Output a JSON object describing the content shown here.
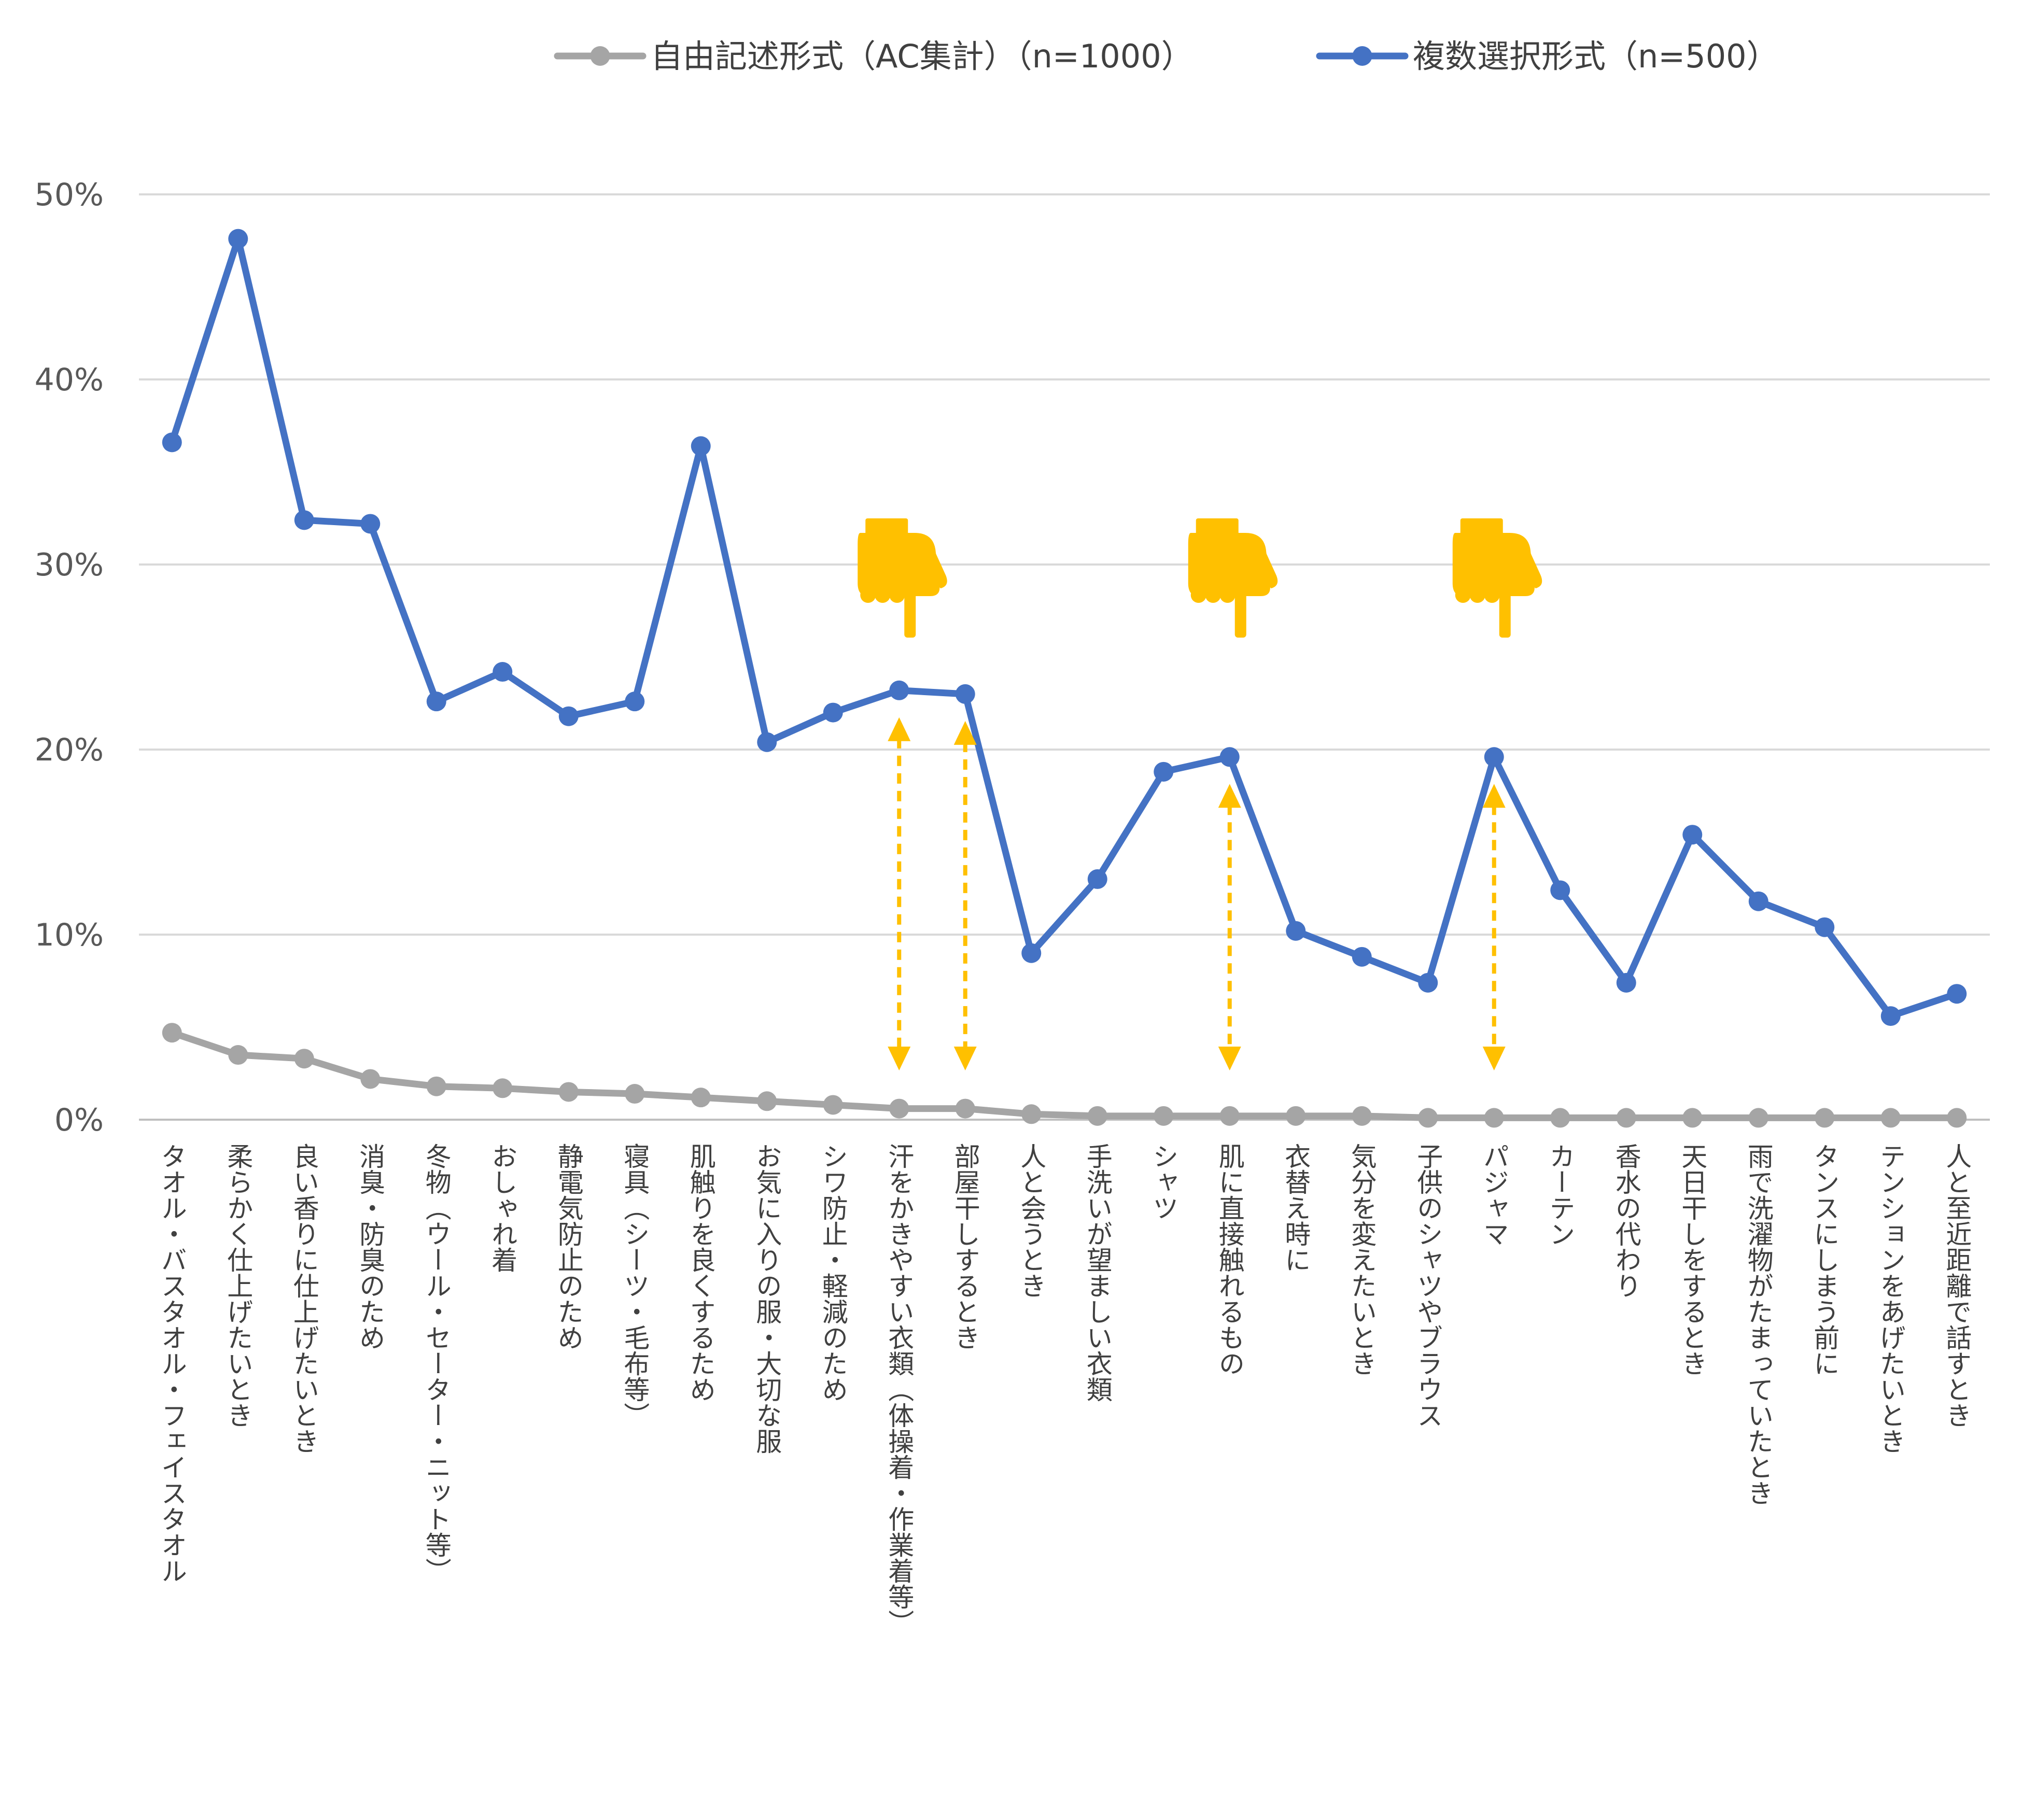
{
  "colors": {
    "series_free": "#a5a5a5",
    "series_multi": "#4472c4",
    "accent": "#ffc000",
    "grid": "#d9d9d9"
  },
  "chart_data": {
    "type": "line",
    "categories": [
      "タオル・バスタオル・フェイスタオル",
      "柔らかく仕上げたいとき",
      "良い香りに仕上げたいとき",
      "消臭・防臭のため",
      "冬物（ウール・セーター・ニット等）",
      "おしゃれ着",
      "静電気防止のため",
      "寝具（シーツ・毛布等）",
      "肌触りを良くするため",
      "お気に入りの服・大切な服",
      "シワ防止・軽減のため",
      "汗をかきやすい衣類（体操着・作業着等）",
      "部屋干しするとき",
      "人と会うとき",
      "手洗いが望ましい衣類",
      "シャツ",
      "肌に直接触れるもの",
      "衣替え時に",
      "気分を変えたいとき",
      "子供のシャツやブラウス",
      "パジャマ",
      "カーテン",
      "香水の代わり",
      "天日干しをするとき",
      "雨で洗濯物がたまっていたとき",
      "タンスにしまう前に",
      "テンションをあげたいとき",
      "人と至近距離で話すとき"
    ],
    "series": [
      {
        "name": "自由記述形式（AC集計）（n=1000）",
        "color": "#a5a5a5",
        "values": [
          4.7,
          3.5,
          3.3,
          2.2,
          1.8,
          1.7,
          1.5,
          1.4,
          1.2,
          1.0,
          0.8,
          0.6,
          0.6,
          0.3,
          0.2,
          0.2,
          0.2,
          0.2,
          0.2,
          0.1,
          0.1,
          0.1,
          0.1,
          0.1,
          0.1,
          0.1,
          0.1,
          0.1
        ]
      },
      {
        "name": "複数選択形式（n=500）",
        "color": "#4472c4",
        "values": [
          36.6,
          47.6,
          32.4,
          32.2,
          22.6,
          24.2,
          21.8,
          22.6,
          36.4,
          20.4,
          22.0,
          23.2,
          23.0,
          9.0,
          13.0,
          18.8,
          19.6,
          10.2,
          8.8,
          7.4,
          19.6,
          12.4,
          7.4,
          15.4,
          11.8,
          10.4,
          5.6,
          6.8
        ]
      }
    ],
    "ylim": [
      0,
      50
    ],
    "yticks": [
      0,
      10,
      20,
      30,
      40,
      50
    ],
    "ytick_labels": [
      "0%",
      "10%",
      "20%",
      "30%",
      "40%",
      "50%"
    ],
    "grid": true,
    "legend_position": "top",
    "highlights": [
      11,
      12,
      16,
      20
    ],
    "pointer_icons_over": [
      11,
      16,
      20
    ]
  }
}
